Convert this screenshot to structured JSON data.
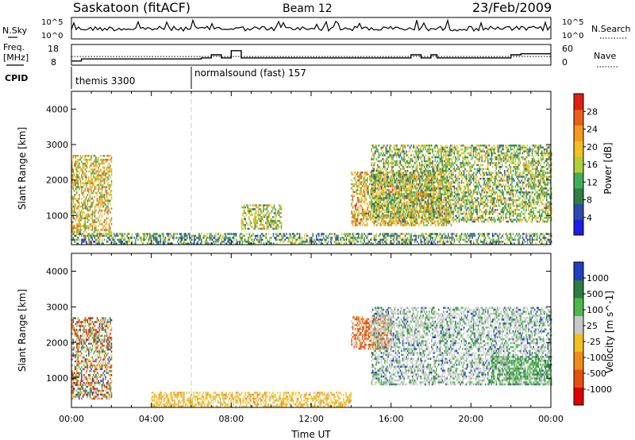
{
  "header": {
    "title": "Saskatoon (fitACF)",
    "beam": "Beam 12",
    "date": "23/Feb/2009"
  },
  "top_panels": {
    "nsky_label": "N.Sky",
    "nsky_ticks": [
      "10^5",
      "10^0"
    ],
    "nsearch_label": "N.Search",
    "nsearch_ticks": [
      "10^5",
      "10^0"
    ],
    "freq_label": "Freq.",
    "freq_unit": "[MHz]",
    "freq_ticks": [
      "18",
      "8"
    ],
    "nave_label": "Nave",
    "nave_ticks": [
      "60",
      "0"
    ],
    "cpid_label": "CPID",
    "cpid_entries": [
      {
        "name": "themis 3300",
        "start_hour": 0.0
      },
      {
        "name": "normalsound (fast) 157",
        "start_hour": 6.0
      }
    ],
    "freq_series": {
      "name": "Freq.",
      "x_hours": [
        0,
        0.5,
        6,
        6.5,
        7,
        7.5,
        8,
        8.5,
        16.8,
        17,
        17.5,
        18,
        18.3,
        22,
        22.5,
        24
      ],
      "values": [
        10,
        11,
        11,
        11.5,
        13,
        11.5,
        15,
        11.5,
        11.5,
        13,
        11.5,
        13,
        11.5,
        13,
        13.5,
        13.5
      ]
    },
    "nave_series": {
      "name": "Nave",
      "x_hours": [
        0,
        6,
        24
      ],
      "values": [
        25,
        25,
        25
      ]
    }
  },
  "chart_data": [
    {
      "type": "heatmap",
      "title": "Power",
      "ylabel": "Slant Range [km]",
      "xlabel": "",
      "x_range_hours": [
        0,
        24
      ],
      "ylim": [
        180,
        4500
      ],
      "y_ticks": [
        "1000",
        "2000",
        "3000",
        "4000"
      ],
      "colorbar": {
        "label": "Power [dB]",
        "range": [
          0,
          32
        ],
        "tick_labels": [
          "4",
          "8",
          "12",
          "16",
          "20",
          "24",
          "28"
        ],
        "colors": [
          "#1e1ee8",
          "#2a4bb0",
          "#2e7d44",
          "#3fae5a",
          "#b3cf3a",
          "#f0c020",
          "#f59a20",
          "#e86018",
          "#e02010"
        ]
      },
      "regions": [
        {
          "t0": 0.0,
          "t1": 2.0,
          "r0": 400,
          "r1": 2700,
          "level": 0.6
        },
        {
          "t0": 8.5,
          "t1": 10.5,
          "r0": 600,
          "r1": 1300,
          "level": 0.5
        },
        {
          "t0": 14.0,
          "t1": 19.0,
          "r0": 700,
          "r1": 2200,
          "level": 0.65
        },
        {
          "t0": 15.0,
          "t1": 24.0,
          "r0": 800,
          "r1": 3000,
          "level": 0.45
        },
        {
          "t0": 0.0,
          "t1": 24.0,
          "r0": 180,
          "r1": 500,
          "level": 0.35
        }
      ]
    },
    {
      "type": "heatmap",
      "title": "Velocity",
      "ylabel": "Slant Range [km]",
      "xlabel": "Time UT",
      "x_range_hours": [
        0,
        24
      ],
      "x_ticks": [
        "00:00",
        "04:00",
        "08:00",
        "12:00",
        "16:00",
        "20:00",
        "00:00"
      ],
      "ylim": [
        180,
        4500
      ],
      "y_ticks": [
        "1000",
        "2000",
        "3000",
        "4000"
      ],
      "colorbar": {
        "label": "Velocity [m s^-1]",
        "tick_labels": [
          "1000",
          "500",
          "100",
          "25",
          "-25",
          "-100",
          "-500",
          "-1000"
        ],
        "colors": [
          "#2040c0",
          "#2e7d44",
          "#4cb848",
          "#c8c8c8",
          "#f0c020",
          "#f08a18",
          "#e85010",
          "#e00000"
        ]
      },
      "regions": [
        {
          "t0": 0.0,
          "t1": 2.0,
          "r0": 400,
          "r1": 2700,
          "category": "mixed"
        },
        {
          "t0": 4.0,
          "t1": 14.0,
          "r0": 180,
          "r1": 600,
          "category": "negative"
        },
        {
          "t0": 14.0,
          "t1": 16.0,
          "r0": 1800,
          "r1": 2700,
          "category": "strong-negative"
        },
        {
          "t0": 15.0,
          "t1": 24.0,
          "r0": 800,
          "r1": 3000,
          "category": "low"
        },
        {
          "t0": 21.0,
          "t1": 24.0,
          "r0": 800,
          "r1": 1600,
          "category": "positive"
        }
      ]
    }
  ],
  "colors": {
    "axis": "#000000",
    "dashed_marker": "#cccccc"
  }
}
